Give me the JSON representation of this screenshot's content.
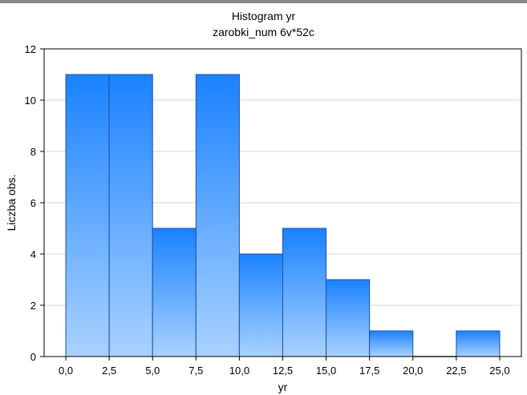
{
  "chart_data": {
    "type": "bar",
    "title": "Histogram    yr",
    "subtitle": "zarobki_num 6v*52c",
    "xlabel": "yr",
    "ylabel": "Liczba obs.",
    "bin_edges": [
      0,
      2.5,
      5,
      7.5,
      10,
      12.5,
      15,
      17.5,
      20,
      22.5,
      25
    ],
    "values": [
      11,
      11,
      5,
      11,
      4,
      5,
      3,
      1,
      0,
      1
    ],
    "xticks": [
      "0,0",
      "2,5",
      "5,0",
      "7,5",
      "10,0",
      "12,5",
      "15,0",
      "17,5",
      "20,0",
      "22,5",
      "25,0"
    ],
    "yticks": [
      0,
      2,
      4,
      6,
      8,
      10,
      12
    ],
    "xlim": [
      -1.25,
      26.25
    ],
    "ylim": [
      0,
      12
    ],
    "grid": "horizontal",
    "colors": {
      "bar_top": "#1a82ff",
      "bar_bottom": "#a9d2ff",
      "bar_edge": "#1f4fa8"
    }
  }
}
